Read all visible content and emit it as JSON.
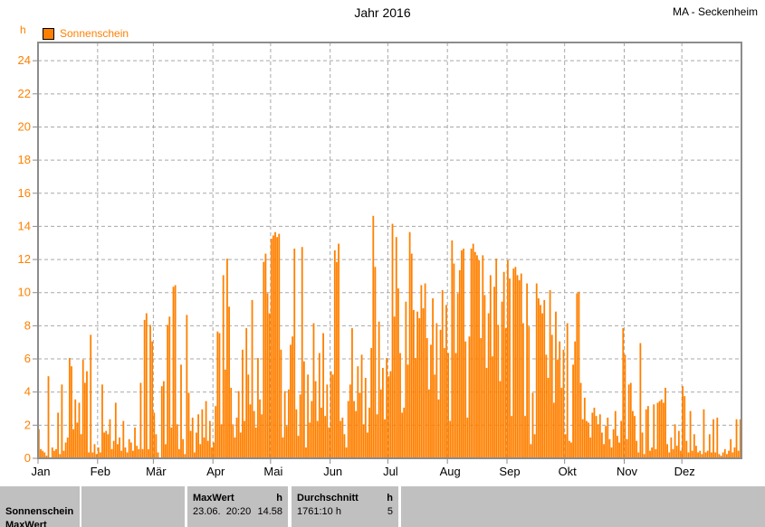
{
  "window": {
    "title": "Jahr 2016",
    "station": "MA - Seckenheim"
  },
  "legend": {
    "series": "Sonnenschein",
    "y_unit": "h"
  },
  "chart_data": {
    "type": "bar",
    "title": "Jahr 2016",
    "subtitle": "MA - Seckenheim",
    "xlabel": "",
    "ylabel": "h",
    "ylim": [
      0,
      25.1
    ],
    "y_ticks": [
      0,
      2,
      4,
      6,
      8,
      10,
      12,
      14,
      16,
      18,
      20,
      22,
      24
    ],
    "grid": "dashed",
    "legend_position": "top-left",
    "bar_color": "#ff8000",
    "days_in_year": 366,
    "x_tick_labels": [
      "Jan",
      "Feb",
      "Mär",
      "Apr",
      "Mai",
      "Jun",
      "Jul",
      "Aug",
      "Sep",
      "Okt",
      "Nov",
      "Dez"
    ],
    "month_start_day_index": [
      0,
      31,
      60,
      91,
      121,
      152,
      182,
      213,
      244,
      274,
      305,
      335
    ],
    "series": [
      {
        "name": "Sonnenschein",
        "unit": "h",
        "color": "#ff8000",
        "daily_values_hours": [
          1.7,
          0.5,
          0.4,
          0.3,
          0.1,
          4.9,
          0,
          0.6,
          0.4,
          0.5,
          2.7,
          0.2,
          4.4,
          0.4,
          0.9,
          1.2,
          6.0,
          5.5,
          1.7,
          3.5,
          2.1,
          3.3,
          1.4,
          5.9,
          4.5,
          5.2,
          0.3,
          7.4,
          0.3,
          0.8,
          0.2,
          0.6,
          0.3,
          4.4,
          1.5,
          1.6,
          1.4,
          2.3,
          0.5,
          1.0,
          3.3,
          0.8,
          1.2,
          0.4,
          2.2,
          0.6,
          0.3,
          1.1,
          0.9,
          0.4,
          1.8,
          0.7,
          0.5,
          4.5,
          0.5,
          8.3,
          8.7,
          0.5,
          8.0,
          7.0,
          2.7,
          1.4,
          0.3,
          0,
          4.3,
          4.6,
          0.8,
          8.0,
          8.5,
          1.8,
          10.3,
          10.4,
          2.0,
          0.5,
          5.6,
          1.1,
          0.2,
          8.6,
          3.9,
          1.6,
          2.4,
          0.3,
          1.5,
          2.6,
          0.8,
          2.9,
          1.2,
          3.4,
          1.0,
          2.2,
          0.6,
          0.9,
          3.1,
          7.6,
          7.5,
          2.0,
          11.0,
          5.3,
          12.0,
          9.1,
          4.2,
          2.0,
          1.2,
          2.4,
          4.0,
          1.5,
          6.5,
          2.2,
          7.8,
          5.0,
          3.2,
          9.5,
          2.8,
          1.8,
          6.0,
          3.5,
          2.6,
          11.8,
          12.3,
          9.9,
          8.7,
          13.2,
          13.4,
          13.6,
          13.3,
          13.5,
          6.5,
          1.2,
          4.0,
          1.9,
          4.1,
          6.8,
          7.3,
          12.6,
          2.9,
          1.3,
          3.8,
          12.7,
          5.8,
          0.6,
          5.0,
          2.1,
          3.4,
          8.1,
          4.6,
          2.2,
          6.3,
          3.0,
          7.5,
          2.5,
          4.4,
          1.8,
          5.2,
          5.0,
          12.5,
          11.8,
          12.9,
          2.2,
          2.4,
          1.4,
          0.6,
          3.4,
          4.4,
          7.8,
          3.4,
          2.8,
          5.5,
          3.9,
          6.2,
          2.0,
          4.8,
          1.5,
          3.0,
          6.6,
          14.58,
          11.5,
          2.6,
          8.2,
          4.1,
          5.4,
          2.3,
          6.0,
          4.9,
          5.2,
          14.1,
          8.5,
          13.3,
          10.2,
          6.3,
          2.7,
          3.0,
          9.4,
          5.6,
          13.6,
          12.3,
          8.9,
          6.0,
          8.8,
          8.4,
          10.4,
          9.0,
          10.5,
          7.2,
          4.1,
          6.8,
          9.6,
          5.0,
          8.1,
          3.5,
          7.7,
          10.1,
          6.6,
          9.2,
          6.3,
          2.2,
          13.1,
          11.7,
          6.3,
          9.9,
          11.3,
          12.5,
          12.6,
          7.0,
          2.4,
          7.3,
          12.6,
          12.9,
          12.4,
          12.2,
          11.9,
          7.2,
          12.2,
          9.8,
          5.4,
          8.7,
          11.0,
          6.1,
          10.3,
          12.0,
          8.0,
          4.6,
          9.4,
          11.2,
          7.8,
          11.9,
          10.8,
          2.5,
          11.4,
          11.5,
          11.0,
          10.7,
          11.1,
          8.1,
          2.5,
          10.5,
          7.9,
          0.8,
          3.9,
          1.4,
          10.5,
          9.6,
          9.2,
          8.7,
          9.5,
          6.2,
          4.8,
          10.1,
          7.4,
          3.3,
          8.8,
          5.9,
          7.0,
          4.2,
          6.5,
          1.4,
          8.1,
          1.0,
          0.9,
          5.6,
          7.0,
          9.9,
          10.0,
          4.5,
          2.3,
          3.6,
          2.2,
          2.1,
          1.2,
          2.7,
          3.0,
          2.5,
          2.0,
          2.6,
          1.5,
          0.8,
          1.9,
          2.4,
          1.1,
          0.6,
          1.7,
          2.8,
          1.3,
          0.9,
          2.2,
          7.8,
          6.2,
          1.1,
          4.4,
          4.5,
          2.8,
          2.5,
          1.0,
          0.3,
          6.9,
          1.5,
          0.2,
          2.9,
          3.1,
          0.4,
          0.6,
          3.2,
          0.5,
          3.3,
          3.4,
          3.5,
          3.3,
          4.2,
          0.8,
          0.3,
          1.2,
          0.5,
          2.0,
          0.7,
          1.6,
          0.4,
          4.3,
          3.7,
          1.0,
          0.3,
          2.8,
          0.4,
          1.4,
          0.7,
          0.3,
          0.4,
          0.2,
          2.9,
          0.3,
          0.4,
          1.4,
          0.3,
          2.3,
          0.3,
          2.4,
          0.2,
          0.1,
          0.3,
          0.5,
          0.2,
          0.4,
          1.1,
          0.3,
          0.6,
          2.3,
          0.4,
          2.3
        ]
      }
    ],
    "annotations": {
      "max_value": {
        "date": "23.06.",
        "time": "20:20",
        "value_h": "14.58"
      },
      "year_total_h": "1761:10",
      "daily_mean_h": "5"
    }
  },
  "status_bar": {
    "series_label": "Sonnenschein",
    "clipped_label": "MaxWert",
    "max": {
      "header": "MaxWert",
      "unit": "h",
      "datetime": "23.06.  20:20",
      "value": "14.58"
    },
    "avg": {
      "header": "Durchschnitt",
      "unit": "h",
      "total": "1761:10 h",
      "value": "5"
    }
  },
  "colors": {
    "bar": "#ff8000",
    "axis_label": "#ff8000",
    "frame": "#8c8c8c",
    "grid": "#a8a8a8",
    "panel": "#c0c0c0",
    "text": "#000000"
  }
}
